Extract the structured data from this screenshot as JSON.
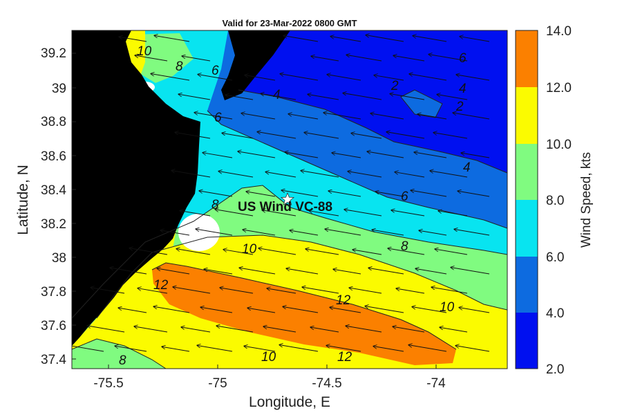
{
  "title": "Valid for 23-Mar-2022 0800 GMT",
  "xlabel": "Longitude, E",
  "ylabel": "Latitude, N",
  "x_ticks": [
    "-75.5",
    "-75",
    "-74.5",
    "-74"
  ],
  "y_ticks": [
    "39.2",
    "39",
    "38.8",
    "38.6",
    "38.4",
    "38.2",
    "38",
    "37.8",
    "37.6",
    "37.4"
  ],
  "colorbar": {
    "label": "Wind Speed, kts",
    "ticks": [
      "14.0",
      "12.0",
      "10.0",
      "8.0",
      "6.0",
      "4.0",
      "2.0"
    ],
    "bands": [
      {
        "range": [
          2,
          4
        ],
        "color": "#0010f0"
      },
      {
        "range": [
          4,
          6
        ],
        "color": "#0d6be0"
      },
      {
        "range": [
          6,
          8
        ],
        "color": "#08e4f0"
      },
      {
        "range": [
          8,
          10
        ],
        "color": "#80fb80"
      },
      {
        "range": [
          10,
          12
        ],
        "color": "#fbfb00"
      },
      {
        "range": [
          12,
          14
        ],
        "color": "#fb8000"
      }
    ]
  },
  "land_color": "#000000",
  "contour_labels": [
    "10",
    "8",
    "6",
    "6",
    "4",
    "6",
    "2",
    "4",
    "2",
    "4",
    "6",
    "8",
    "8",
    "10",
    "12",
    "12",
    "10",
    "12",
    "10",
    "8"
  ],
  "site": {
    "label": "US Wind VC-88",
    "icon": "star-icon",
    "lon": -74.69,
    "lat": 38.35
  },
  "chart_data": {
    "type": "heatmap",
    "title": "Valid for 23-Mar-2022 0800 GMT",
    "xlabel": "Longitude, E",
    "ylabel": "Latitude, N",
    "xlim": [
      -75.67,
      -73.7
    ],
    "ylim": [
      37.33,
      39.35
    ],
    "colorbar_label": "Wind Speed, kts",
    "clim": [
      2,
      14
    ],
    "contour_levels": [
      2,
      4,
      6,
      8,
      10,
      12
    ],
    "wind_direction": "from east-northeast (toward west-southwest)",
    "annotation": "US Wind VC-88"
  }
}
